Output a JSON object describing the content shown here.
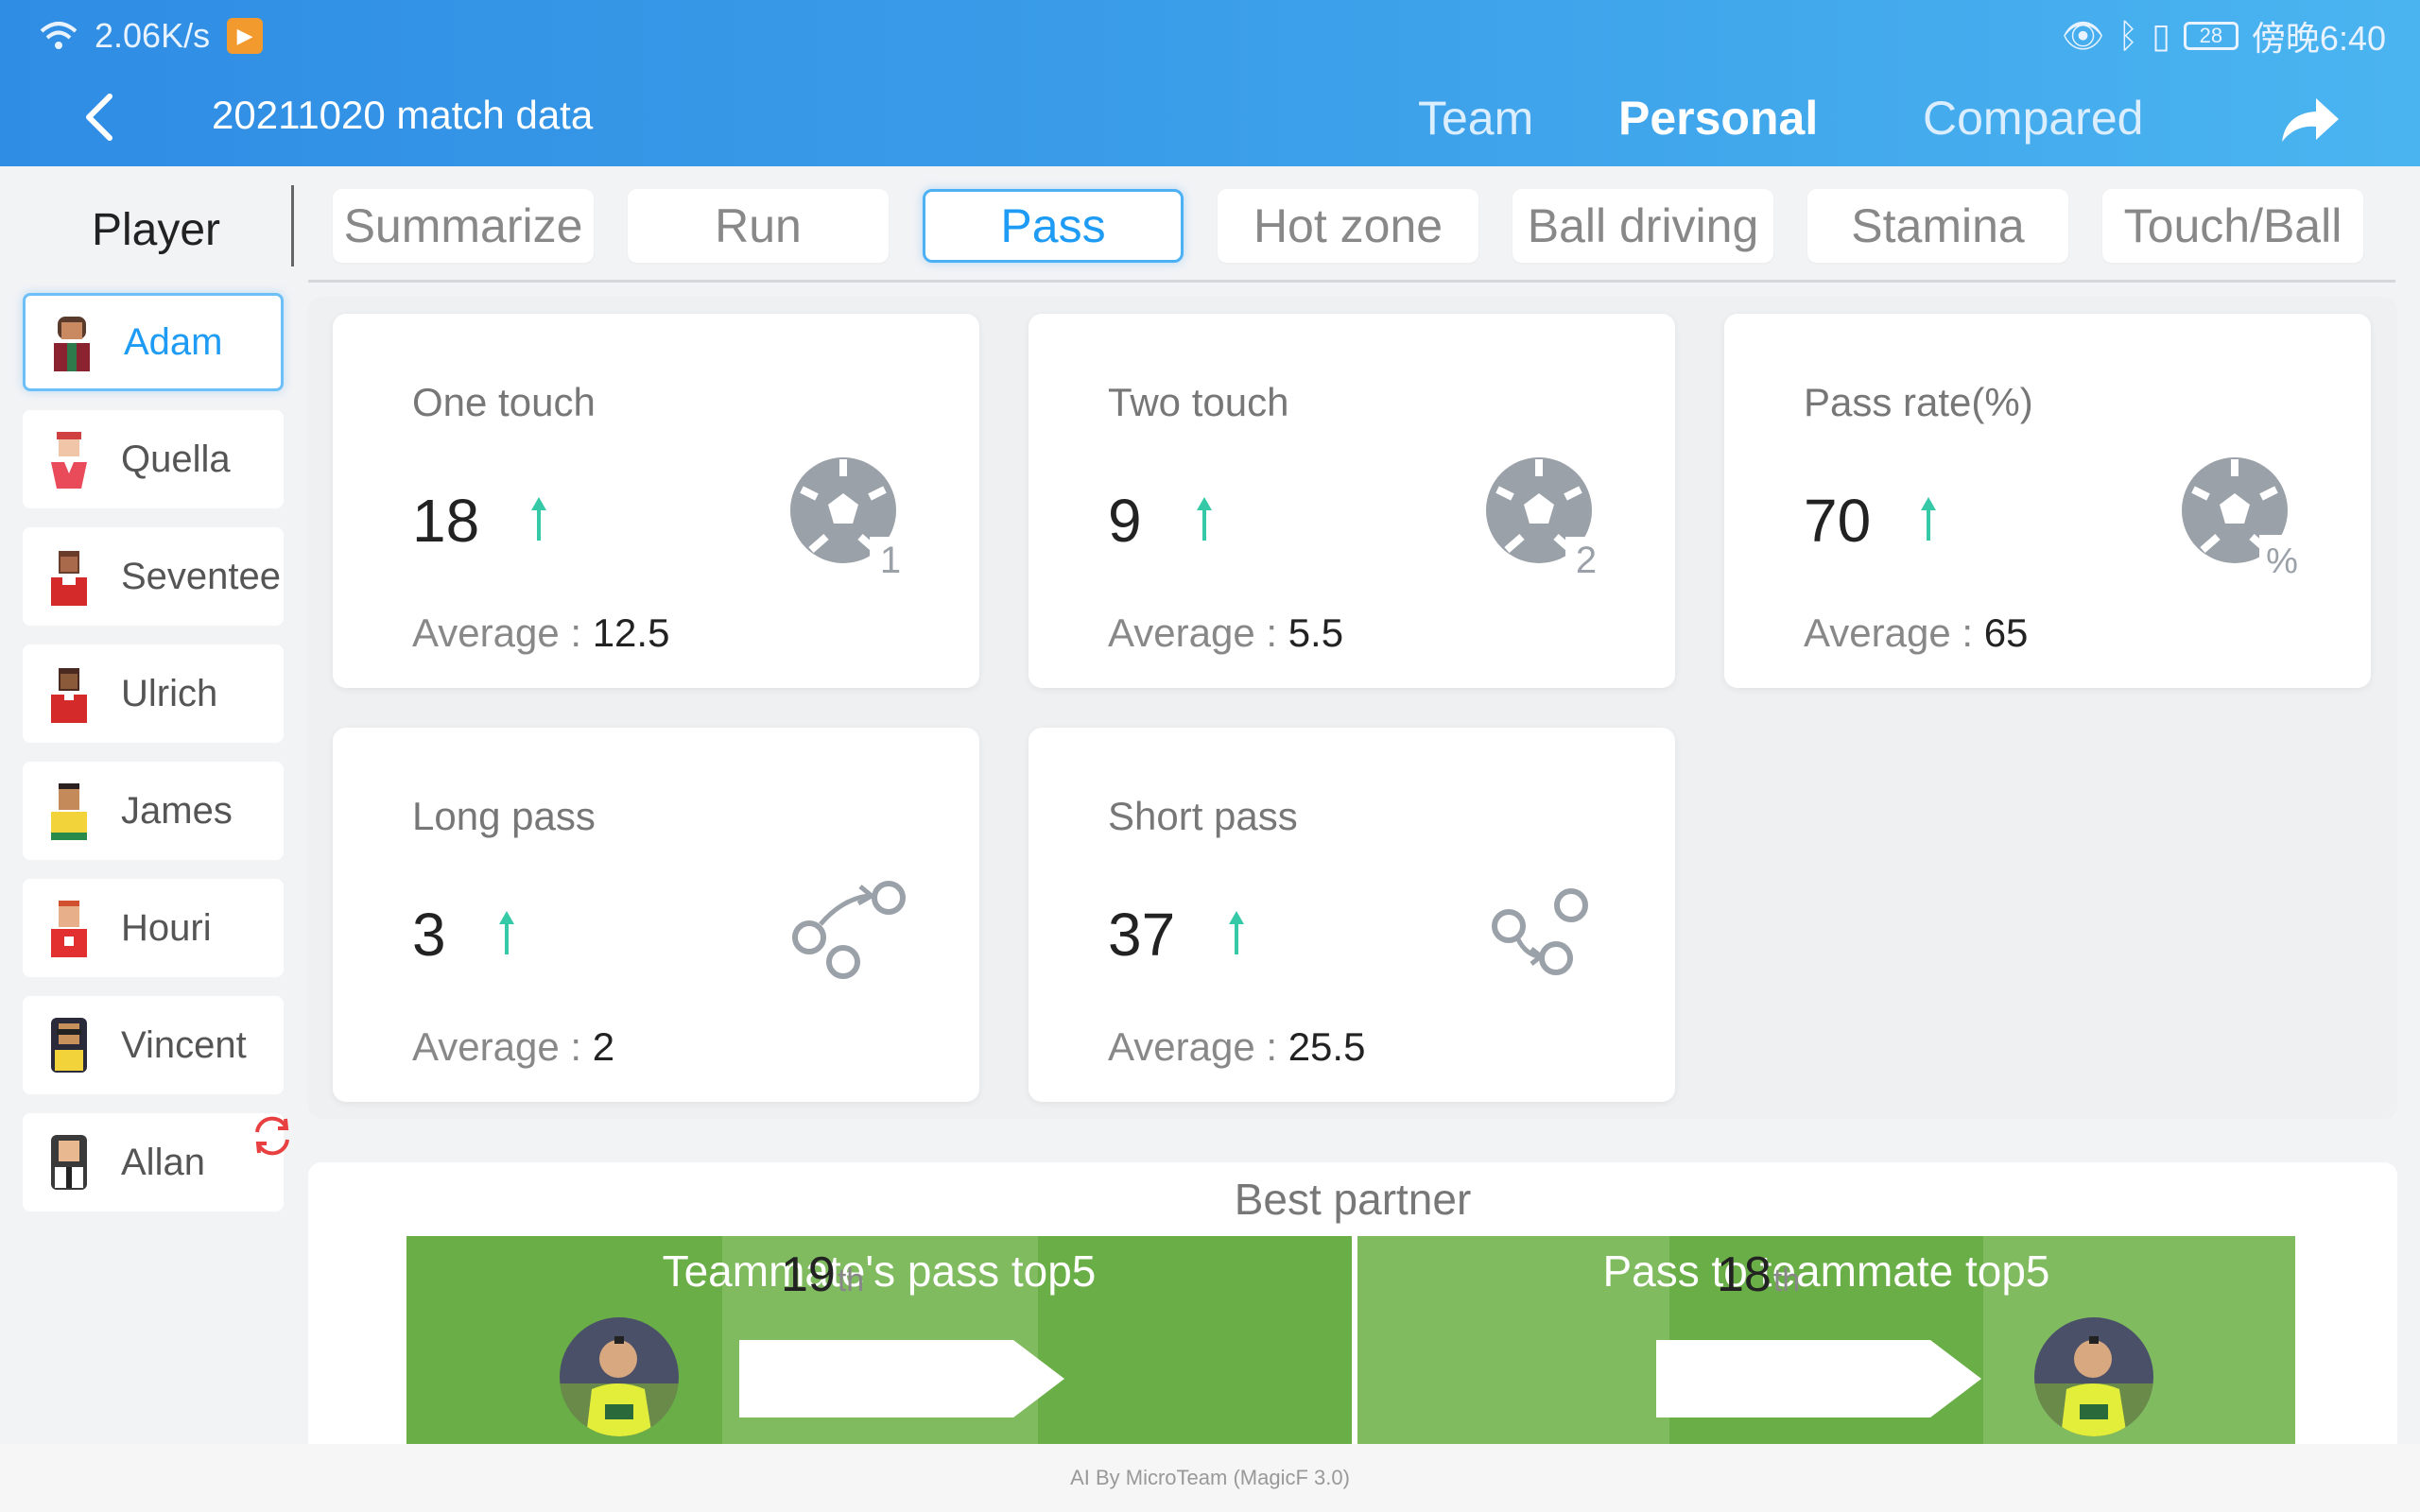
{
  "status_bar": {
    "network_speed": "2.06K/s",
    "battery": "28",
    "time": "傍晚6:40"
  },
  "header": {
    "title": "20211020 match data",
    "tabs": [
      {
        "label": "Team",
        "active": false
      },
      {
        "label": "Personal",
        "active": true
      },
      {
        "label": "Compared",
        "active": false
      }
    ]
  },
  "player_list": {
    "header": "Player",
    "items": [
      {
        "name": "Adam",
        "active": true
      },
      {
        "name": "Quella",
        "active": false
      },
      {
        "name": "Seventee",
        "active": false
      },
      {
        "name": "Ulrich",
        "active": false
      },
      {
        "name": "James",
        "active": false
      },
      {
        "name": "Houri",
        "active": false
      },
      {
        "name": "Vincent",
        "active": false
      },
      {
        "name": "Allan",
        "active": false
      }
    ]
  },
  "subtabs": [
    {
      "label": "Summarize",
      "active": false
    },
    {
      "label": "Run",
      "active": false
    },
    {
      "label": "Pass",
      "active": true
    },
    {
      "label": "Hot zone",
      "active": false
    },
    {
      "label": "Ball driving",
      "active": false
    },
    {
      "label": "Stamina",
      "active": false
    },
    {
      "label": "Touch/Ball",
      "active": false
    }
  ],
  "stats": [
    {
      "title": "One touch",
      "value": "18",
      "trend": "up",
      "avg_label": "Average : ",
      "avg": "12.5",
      "icon": "soccer-ball-1-icon",
      "icon_badge": "1"
    },
    {
      "title": "Two touch",
      "value": "9",
      "trend": "up",
      "avg_label": "Average : ",
      "avg": "5.5",
      "icon": "soccer-ball-2-icon",
      "icon_badge": "2"
    },
    {
      "title": "Pass rate(%)",
      "value": "70",
      "trend": "up",
      "avg_label": "Average : ",
      "avg": "65",
      "icon": "soccer-ball-percent-icon",
      "icon_badge": "%"
    },
    {
      "title": "Long pass",
      "value": "3",
      "trend": "up",
      "avg_label": "Average : ",
      "avg": "2",
      "icon": "long-pass-icon"
    },
    {
      "title": "Short pass",
      "value": "37",
      "trend": "up",
      "avg_label": "Average : ",
      "avg": "25.5",
      "icon": "short-pass-icon"
    }
  ],
  "best_partner": {
    "title": "Best partner",
    "left": {
      "title": "Teammate's pass top5",
      "rank": "19",
      "suffix": "th"
    },
    "right": {
      "title": "Pass to teammate top5",
      "rank": "18",
      "suffix": "th"
    }
  },
  "footer": "AI By MicroTeam (MagicF 3.0)",
  "colors": {
    "accent": "#1e9bf5",
    "header_start": "#2f8de4",
    "header_end": "#4ab4f0",
    "trend_up": "#35c9a8",
    "field_dark": "#6aae47",
    "field_light": "#80bb60"
  }
}
